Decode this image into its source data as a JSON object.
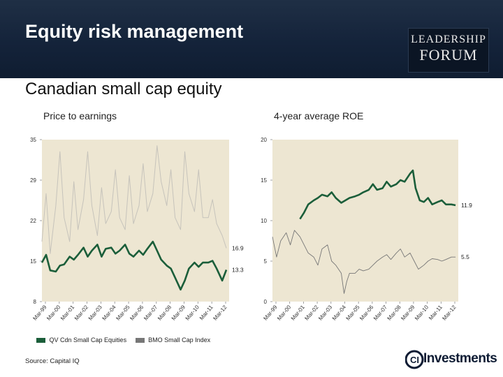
{
  "header": {
    "title": "Equity risk management",
    "logo": {
      "line1": "LEADERSHIP",
      "line2": "FORUM"
    }
  },
  "subtitle": "Canadian small cap equity",
  "colors": {
    "green": "#1b5e3a",
    "gray": "#c8c8c8",
    "header_bg": "#17263c"
  },
  "legend": [
    {
      "label": "QV Cdn Small Cap Equities",
      "color": "#1b5e3a"
    },
    {
      "label": "BMO Small Cap Index",
      "color": "#777777"
    }
  ],
  "source": "Source: Capital IQ",
  "footer_logo": {
    "text": "Investments",
    "mark": "CI"
  },
  "chart_data": [
    {
      "type": "line",
      "title": "Price to earnings",
      "x_ticks": [
        "Mar-99",
        "Mar-00",
        "Mar-01",
        "Mar-02",
        "Mar-03",
        "Mar-04",
        "Mar-05",
        "Mar-06",
        "Mar-07",
        "Mar-08",
        "Mar-09",
        "Mar-10",
        "Mar-11",
        "Mar-12"
      ],
      "y_ticks": [
        "35",
        "29",
        "22",
        "15",
        "8"
      ],
      "ylim": [
        8,
        35
      ],
      "xlim": [
        1999.0,
        2012.5
      ],
      "end_labels": [
        "16.9",
        "13.3"
      ],
      "series": [
        {
          "name": "QV Cdn Small Cap Equities",
          "x": [
            1999.0,
            1999.3,
            1999.6,
            2000.0,
            2000.3,
            2000.6,
            2001.0,
            2001.3,
            2001.6,
            2002.0,
            2002.3,
            2002.6,
            2003.0,
            2003.3,
            2003.6,
            2004.0,
            2004.3,
            2004.6,
            2005.0,
            2005.3,
            2005.6,
            2006.0,
            2006.3,
            2006.6,
            2007.0,
            2007.3,
            2007.6,
            2008.0,
            2008.3,
            2008.6,
            2009.0,
            2009.3,
            2009.6,
            2010.0,
            2010.3,
            2010.6,
            2011.0,
            2011.3,
            2011.6,
            2012.0,
            2012.3
          ],
          "values": [
            14.5,
            15.8,
            13.2,
            13.0,
            14.0,
            14.2,
            15.5,
            15.0,
            15.8,
            17.0,
            15.5,
            16.5,
            17.5,
            15.5,
            16.8,
            17.0,
            16.0,
            16.5,
            17.5,
            16.0,
            15.5,
            16.5,
            15.8,
            16.8,
            18.0,
            16.5,
            15.0,
            14.0,
            13.5,
            12.0,
            10.0,
            11.5,
            13.5,
            14.5,
            13.8,
            14.5,
            14.5,
            14.8,
            13.5,
            11.5,
            13.3
          ]
        },
        {
          "name": "BMO Small Cap Index",
          "x": [
            1999.0,
            1999.3,
            1999.6,
            2000.0,
            2000.3,
            2000.6,
            2001.0,
            2001.3,
            2001.6,
            2002.0,
            2002.3,
            2002.6,
            2003.0,
            2003.3,
            2003.6,
            2004.0,
            2004.3,
            2004.6,
            2005.0,
            2005.3,
            2005.6,
            2006.0,
            2006.3,
            2006.6,
            2007.0,
            2007.3,
            2007.6,
            2008.0,
            2008.3,
            2008.6,
            2009.0,
            2009.3,
            2009.6,
            2010.0,
            2010.3,
            2010.6,
            2011.0,
            2011.3,
            2011.6,
            2012.0,
            2012.3
          ],
          "values": [
            18,
            26,
            16,
            24,
            33,
            22,
            18,
            28,
            20,
            25,
            33,
            24,
            19,
            27,
            21,
            23,
            30,
            22,
            20,
            29,
            21,
            24,
            31,
            23,
            26,
            34,
            28,
            24,
            30,
            22,
            20,
            33,
            26,
            23,
            30,
            22,
            22,
            25,
            21,
            19,
            16.9
          ]
        }
      ]
    },
    {
      "type": "line",
      "title": "4-year average ROE",
      "x_ticks": [
        "Mar-99",
        "Mar-00",
        "Mar-01",
        "Mar-02",
        "Mar-03",
        "Mar-04",
        "Mar-05",
        "Mar-06",
        "Mar-07",
        "Mar-08",
        "Mar-09",
        "Mar-10",
        "Mar-11",
        "Mar-12"
      ],
      "y_ticks": [
        "20",
        "15",
        "10",
        "5",
        "0"
      ],
      "ylim": [
        0,
        20
      ],
      "xlim": [
        1999.0,
        2012.5
      ],
      "end_labels": [
        "11.9",
        "5.5"
      ],
      "series": [
        {
          "name": "QV Cdn Small Cap Equities",
          "x": [
            2001.0,
            2001.3,
            2001.6,
            2002.0,
            2002.3,
            2002.6,
            2003.0,
            2003.3,
            2003.6,
            2004.0,
            2004.3,
            2004.6,
            2005.0,
            2005.3,
            2005.6,
            2006.0,
            2006.3,
            2006.6,
            2007.0,
            2007.3,
            2007.6,
            2008.0,
            2008.3,
            2008.6,
            2009.0,
            2009.2,
            2009.4,
            2009.7,
            2010.0,
            2010.3,
            2010.6,
            2011.0,
            2011.3,
            2011.6,
            2012.0,
            2012.3
          ],
          "values": [
            10.2,
            11.0,
            12.0,
            12.5,
            12.8,
            13.2,
            13.0,
            13.5,
            12.8,
            12.2,
            12.5,
            12.8,
            13.0,
            13.2,
            13.5,
            13.8,
            14.5,
            13.8,
            14.0,
            14.8,
            14.2,
            14.5,
            15.0,
            14.8,
            15.8,
            16.2,
            14.0,
            12.5,
            12.3,
            12.8,
            12.0,
            12.3,
            12.5,
            12.0,
            12.0,
            11.9
          ]
        },
        {
          "name": "BMO Small Cap Index",
          "x": [
            1999.0,
            1999.3,
            1999.6,
            2000.0,
            2000.3,
            2000.6,
            2001.0,
            2001.3,
            2001.6,
            2002.0,
            2002.3,
            2002.6,
            2003.0,
            2003.3,
            2003.6,
            2004.0,
            2004.2,
            2004.4,
            2004.6,
            2005.0,
            2005.3,
            2005.6,
            2006.0,
            2006.3,
            2006.6,
            2007.0,
            2007.3,
            2007.6,
            2008.0,
            2008.3,
            2008.6,
            2009.0,
            2009.3,
            2009.6,
            2010.0,
            2010.3,
            2010.6,
            2011.0,
            2011.3,
            2011.6,
            2012.0,
            2012.3
          ],
          "values": [
            8.0,
            5.5,
            7.5,
            8.5,
            7.0,
            8.8,
            8.0,
            7.0,
            6.0,
            5.5,
            4.5,
            6.5,
            7.0,
            5.0,
            4.5,
            3.5,
            1.0,
            2.5,
            3.5,
            3.5,
            4.0,
            3.8,
            4.0,
            4.5,
            5.0,
            5.5,
            5.8,
            5.2,
            6.0,
            6.5,
            5.5,
            6.0,
            5.0,
            4.0,
            4.5,
            5.0,
            5.3,
            5.2,
            5.0,
            5.2,
            5.5,
            5.5
          ]
        }
      ]
    }
  ]
}
